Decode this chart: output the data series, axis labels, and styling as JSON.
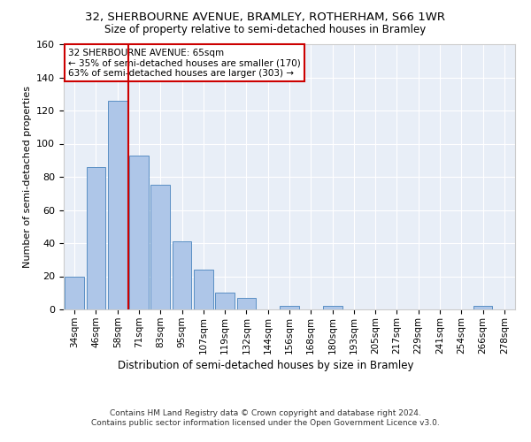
{
  "title1": "32, SHERBOURNE AVENUE, BRAMLEY, ROTHERHAM, S66 1WR",
  "title2": "Size of property relative to semi-detached houses in Bramley",
  "xlabel": "Distribution of semi-detached houses by size in Bramley",
  "ylabel": "Number of semi-detached properties",
  "categories": [
    "34sqm",
    "46sqm",
    "58sqm",
    "71sqm",
    "83sqm",
    "95sqm",
    "107sqm",
    "119sqm",
    "132sqm",
    "144sqm",
    "156sqm",
    "168sqm",
    "180sqm",
    "193sqm",
    "205sqm",
    "217sqm",
    "229sqm",
    "241sqm",
    "254sqm",
    "266sqm",
    "278sqm"
  ],
  "values": [
    20,
    86,
    126,
    93,
    75,
    41,
    24,
    10,
    7,
    0,
    2,
    0,
    2,
    0,
    0,
    0,
    0,
    0,
    0,
    2,
    0
  ],
  "bar_color": "#aec6e8",
  "bar_edge_color": "#5a8fc4",
  "vline_color": "#cc0000",
  "annotation_title": "32 SHERBOURNE AVENUE: 65sqm",
  "annotation_line1": "← 35% of semi-detached houses are smaller (170)",
  "annotation_line2": "63% of semi-detached houses are larger (303) →",
  "annotation_box_color": "#cc0000",
  "ylim": [
    0,
    160
  ],
  "yticks": [
    0,
    20,
    40,
    60,
    80,
    100,
    120,
    140,
    160
  ],
  "footer1": "Contains HM Land Registry data © Crown copyright and database right 2024.",
  "footer2": "Contains public sector information licensed under the Open Government Licence v3.0.",
  "bg_color": "#e8eef7",
  "fig_bg_color": "#ffffff"
}
